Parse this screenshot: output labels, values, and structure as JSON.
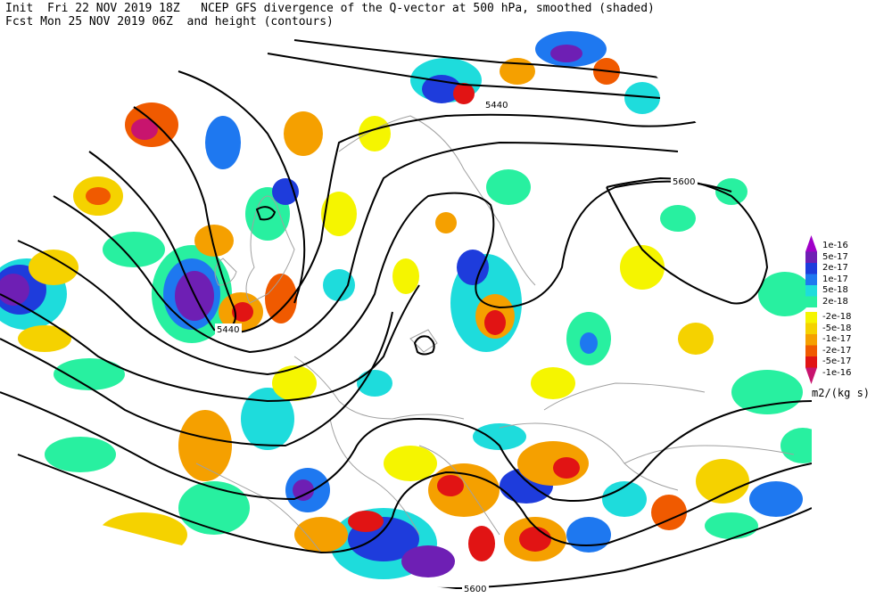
{
  "header": {
    "line1": "Init  Fri 22 NOV 2019 18Z   NCEP GFS divergence of the Q-vector at 500 hPa, smoothed (shaded)",
    "line2": "Fcst Mon 25 NOV 2019 06Z  and height (contours)"
  },
  "colorbar": {
    "units": "m2/(kg s)",
    "items": [
      {
        "label": "1e-16",
        "color": "#a000c8"
      },
      {
        "label": "5e-17",
        "color": "#6e1fb4"
      },
      {
        "label": "2e-17",
        "color": "#1e3cdc"
      },
      {
        "label": "1e-17",
        "color": "#1e78f0"
      },
      {
        "label": "5e-18",
        "color": "#1edcdc"
      },
      {
        "label": "2e-18",
        "color": "#28f0a0"
      },
      {
        "label": "-2e-18",
        "color": "#f5f500"
      },
      {
        "label": "-5e-18",
        "color": "#f5d200"
      },
      {
        "label": "-1e-17",
        "color": "#f5a000"
      },
      {
        "label": "-2e-17",
        "color": "#f05a00"
      },
      {
        "label": "-5e-17",
        "color": "#e11414"
      },
      {
        "label": "-1e-16",
        "color": "#c8146e"
      }
    ]
  },
  "contour_labels": [
    {
      "text": "5440"
    },
    {
      "text": "5440"
    },
    {
      "text": "5600"
    },
    {
      "text": "5600"
    }
  ]
}
